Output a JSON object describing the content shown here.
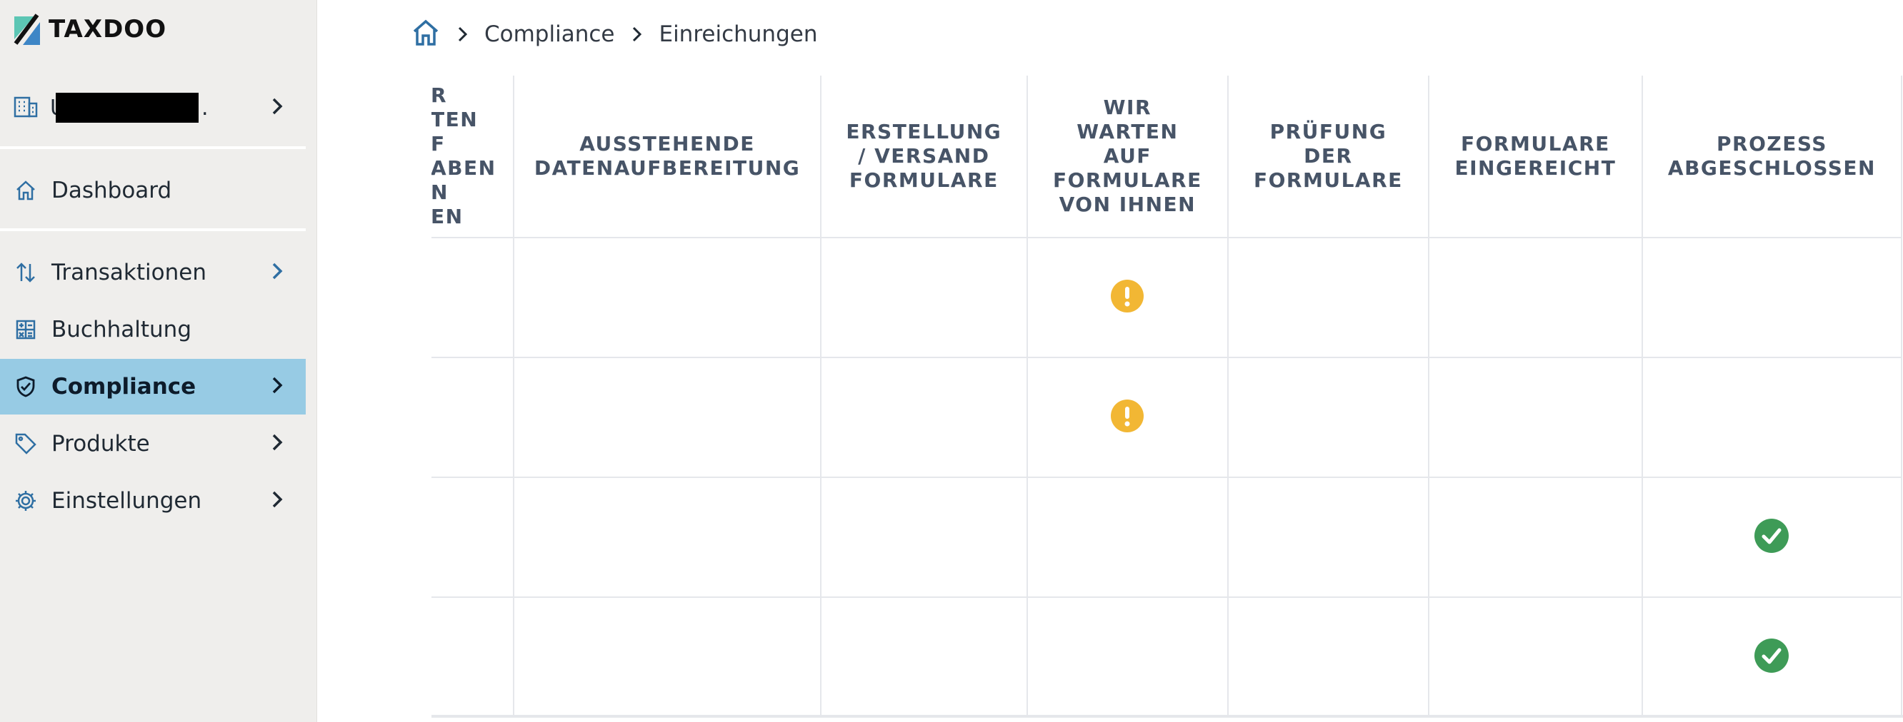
{
  "app": {
    "logo_text": "TAXDOO"
  },
  "sidebar": {
    "org_name_visible_prefix": "U",
    "org_name_visible_suffix": ".",
    "items": [
      {
        "label": "Dashboard",
        "icon": "home-icon",
        "has_chevron": false
      },
      {
        "label": "Transaktionen",
        "icon": "transfer-arrows-icon",
        "has_chevron": true
      },
      {
        "label": "Buchhaltung",
        "icon": "calculator-icon",
        "has_chevron": false
      },
      {
        "label": "Compliance",
        "icon": "shield-check-icon",
        "has_chevron": true,
        "active": true
      },
      {
        "label": "Produkte",
        "icon": "tag-icon",
        "has_chevron": true
      },
      {
        "label": "Einstellungen",
        "icon": "gear-icon",
        "has_chevron": true
      }
    ]
  },
  "breadcrumb": {
    "items": [
      "Compliance",
      "Einreichungen"
    ]
  },
  "table": {
    "partial_header": "R\nTEN\nF\nABEN\nN\nEN",
    "columns": [
      "AUSSTEHENDE\nDATENAUFBEREITUNG",
      "ERSTELLUNG\n/ VERSAND\nFORMULARE",
      "WIR\nWARTEN\nAUF\nFORMULARE\nVON IHNEN",
      "PRÜFUNG\nDER\nFORMULARE",
      "FORMULARE\nEINGEREICHT",
      "PROZESS\nABGESCHLOSSEN"
    ],
    "rows": [
      {
        "status_column": "WIR WARTEN AUF FORMULARE VON IHNEN",
        "status_icon": "warning-icon"
      },
      {
        "status_column": "WIR WARTEN AUF FORMULARE VON IHNEN",
        "status_icon": "warning-icon"
      },
      {
        "status_column": "PROZESS ABGESCHLOSSEN",
        "status_icon": "check-circle-icon"
      },
      {
        "status_column": "PROZESS ABGESCHLOSSEN",
        "status_icon": "check-circle-icon"
      }
    ]
  },
  "colors": {
    "sidebar_bg": "#efeeec",
    "active_bg": "#97cbe4",
    "icon_blue": "#2f6fa3",
    "warning": "#f2b734",
    "success": "#3e9b57",
    "header_text": "#475467"
  }
}
